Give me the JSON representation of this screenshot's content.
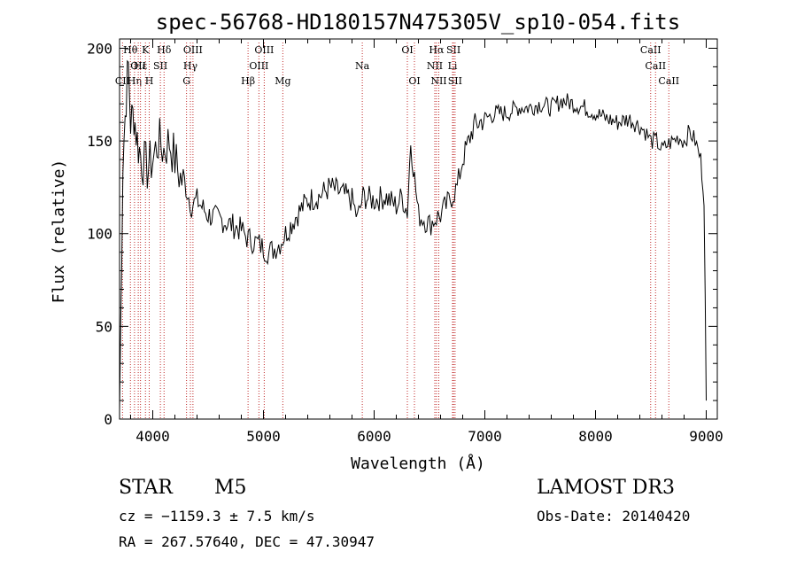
{
  "chart_data": {
    "type": "line",
    "title": "spec-56768-HD180157N475305V_sp10-054.fits",
    "xlabel": "Wavelength (Å)",
    "ylabel": "Flux (relative)",
    "xlim": [
      3700,
      9100
    ],
    "ylim": [
      0,
      205
    ],
    "xticks": [
      4000,
      5000,
      6000,
      7000,
      8000,
      9000
    ],
    "xtick_labels": [
      "4000",
      "5000",
      "6000",
      "7000",
      "8000",
      "9000"
    ],
    "yticks": [
      0,
      50,
      100,
      150,
      200
    ],
    "ytick_labels": [
      "0",
      "50",
      "100",
      "150",
      "200"
    ],
    "grid": false,
    "series": [
      {
        "x": [
          3700,
          3730,
          3760,
          3780,
          3800,
          3830,
          3860,
          3900,
          3950,
          4000,
          4050,
          4100,
          4150,
          4200,
          4250,
          4300,
          4350,
          4400,
          4500,
          4600,
          4700,
          4800,
          4850,
          4900,
          4950,
          5000,
          5050,
          5100,
          5150,
          5200,
          5300,
          5400,
          5500,
          5600,
          5700,
          5800,
          5850,
          5900,
          6000,
          6100,
          6200,
          6250,
          6300,
          6330,
          6400,
          6450,
          6500,
          6550,
          6600,
          6650,
          6700,
          6750,
          6800,
          6900,
          7000,
          7100,
          7200,
          7300,
          7400,
          7500,
          7600,
          7700,
          7800,
          7900,
          8000,
          8100,
          8200,
          8300,
          8400,
          8450,
          8500,
          8550,
          8600,
          8650,
          8700,
          8750,
          8800,
          8850,
          8900,
          8950,
          8980,
          9000
        ],
        "y": [
          5,
          140,
          175,
          190,
          160,
          165,
          150,
          140,
          135,
          140,
          150,
          145,
          150,
          140,
          130,
          125,
          115,
          118,
          110,
          108,
          105,
          102,
          98,
          96,
          95,
          92,
          90,
          92,
          95,
          100,
          110,
          118,
          120,
          125,
          122,
          118,
          108,
          120,
          118,
          120,
          115,
          120,
          112,
          150,
          110,
          108,
          105,
          108,
          110,
          115,
          120,
          125,
          140,
          158,
          162,
          165,
          165,
          168,
          168,
          170,
          168,
          172,
          170,
          168,
          165,
          162,
          160,
          162,
          158,
          155,
          150,
          150,
          145,
          148,
          150,
          152,
          150,
          155,
          150,
          140,
          120,
          10
        ]
      }
    ]
  },
  "lines": [
    {
      "label": "CII",
      "wl": 3727,
      "row": 2
    },
    {
      "label": "Hθ",
      "wl": 3798,
      "row": 0
    },
    {
      "label": "Hη",
      "wl": 3835,
      "row": 2
    },
    {
      "label": "OII",
      "wl": 3869,
      "row": 1
    },
    {
      "label": "Hε",
      "wl": 3889,
      "row": 1
    },
    {
      "label": "K",
      "wl": 3934,
      "row": 0
    },
    {
      "label": "H",
      "wl": 3968,
      "row": 2
    },
    {
      "label": "SII",
      "wl": 4069,
      "row": 1
    },
    {
      "label": "Hδ",
      "wl": 4102,
      "row": 0
    },
    {
      "label": "G",
      "wl": 4305,
      "row": 2
    },
    {
      "label": "Hγ",
      "wl": 4340,
      "row": 1
    },
    {
      "label": "OIII",
      "wl": 4363,
      "row": 0
    },
    {
      "label": "Hβ",
      "wl": 4861,
      "row": 2
    },
    {
      "label": "OIII",
      "wl": 4959,
      "row": 1
    },
    {
      "label": "OIII",
      "wl": 5007,
      "row": 0
    },
    {
      "label": "Mg",
      "wl": 5175,
      "row": 2
    },
    {
      "label": "Na",
      "wl": 5893,
      "row": 1
    },
    {
      "label": "OI",
      "wl": 6300,
      "row": 0
    },
    {
      "label": "OI",
      "wl": 6364,
      "row": 2
    },
    {
      "label": "NII",
      "wl": 6548,
      "row": 1
    },
    {
      "label": "Hα",
      "wl": 6563,
      "row": 0
    },
    {
      "label": "NII",
      "wl": 6584,
      "row": 2
    },
    {
      "label": "Li",
      "wl": 6708,
      "row": 1
    },
    {
      "label": "SII",
      "wl": 6717,
      "row": 0
    },
    {
      "label": "SII",
      "wl": 6731,
      "row": 2
    },
    {
      "label": "CaII",
      "wl": 8498,
      "row": 0
    },
    {
      "label": "CaII",
      "wl": 8542,
      "row": 1
    },
    {
      "label": "CaII",
      "wl": 8662,
      "row": 2
    }
  ],
  "colors": {
    "marker_line": "#c02a2a",
    "spectrum": "#000000",
    "axis": "#000000"
  },
  "footer": {
    "object_class": "STAR",
    "subclass": "M5",
    "survey": "LAMOST DR3",
    "cz": "cz = −1159.3 ± 7.5 km/s",
    "obs_date": "Obs-Date: 20140420",
    "radec": "RA = 267.57640, DEC =  47.30947"
  }
}
